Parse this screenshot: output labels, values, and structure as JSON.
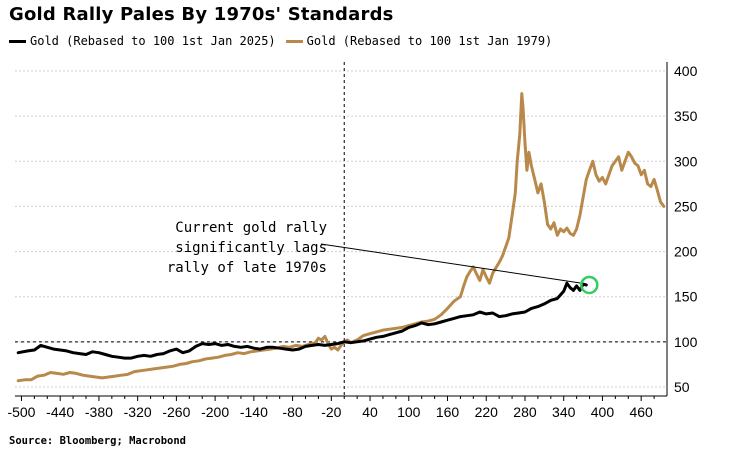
{
  "header": {
    "title": "Gold Rally Pales By 1970s' Standards"
  },
  "footer": {
    "source": "Source: Bloomberg; Macrobond"
  },
  "colors": {
    "series_2025": "#000000",
    "series_1979": "#b8894a",
    "grid": "#cfcfcf",
    "highlight": "#33cc66"
  },
  "chart_data": {
    "type": "line",
    "title": "Gold Rally Pales By 1970s' Standards",
    "xlabel": "",
    "ylabel": "",
    "xlim": [
      -510,
      500
    ],
    "ylim": [
      40,
      410
    ],
    "x_ticks": [
      -500,
      -440,
      -380,
      -320,
      -260,
      -200,
      -140,
      -80,
      -20,
      40,
      100,
      160,
      220,
      280,
      340,
      400,
      460
    ],
    "y_ticks": [
      50,
      100,
      150,
      200,
      250,
      300,
      350,
      400
    ],
    "y_axis_side": "right",
    "grid": "horizontal dotted",
    "legend_position": "top",
    "reference_lines": [
      {
        "axis": "y",
        "value": 100,
        "style": "dashed"
      },
      {
        "axis": "x",
        "value": 0,
        "style": "dashed"
      }
    ],
    "annotation": {
      "lines": [
        "Current gold rally",
        "significantly lags",
        "rally of late 1970s"
      ],
      "points_to": {
        "x": 375,
        "y": 163
      }
    },
    "series": [
      {
        "name": "Gold (Rebased to 100 1st Jan 2025)",
        "color": "#000000",
        "points": [
          [
            -505,
            88
          ],
          [
            -490,
            90
          ],
          [
            -480,
            91
          ],
          [
            -470,
            96
          ],
          [
            -460,
            94
          ],
          [
            -450,
            92
          ],
          [
            -440,
            91
          ],
          [
            -430,
            90
          ],
          [
            -420,
            88
          ],
          [
            -410,
            87
          ],
          [
            -400,
            86
          ],
          [
            -390,
            89
          ],
          [
            -380,
            88
          ],
          [
            -370,
            86
          ],
          [
            -360,
            84
          ],
          [
            -350,
            83
          ],
          [
            -340,
            82
          ],
          [
            -330,
            82
          ],
          [
            -320,
            84
          ],
          [
            -310,
            85
          ],
          [
            -300,
            84
          ],
          [
            -290,
            86
          ],
          [
            -280,
            87
          ],
          [
            -270,
            90
          ],
          [
            -260,
            92
          ],
          [
            -250,
            88
          ],
          [
            -240,
            90
          ],
          [
            -230,
            95
          ],
          [
            -220,
            98
          ],
          [
            -210,
            97
          ],
          [
            -200,
            98
          ],
          [
            -190,
            96
          ],
          [
            -180,
            97
          ],
          [
            -170,
            95
          ],
          [
            -160,
            94
          ],
          [
            -150,
            95
          ],
          [
            -140,
            93
          ],
          [
            -130,
            92
          ],
          [
            -120,
            94
          ],
          [
            -110,
            94
          ],
          [
            -100,
            93
          ],
          [
            -90,
            92
          ],
          [
            -80,
            91
          ],
          [
            -70,
            92
          ],
          [
            -60,
            95
          ],
          [
            -50,
            96
          ],
          [
            -40,
            97
          ],
          [
            -30,
            96
          ],
          [
            -20,
            97
          ],
          [
            -10,
            98
          ],
          [
            0,
            100
          ],
          [
            10,
            99
          ],
          [
            20,
            100
          ],
          [
            30,
            101
          ],
          [
            40,
            103
          ],
          [
            50,
            105
          ],
          [
            60,
            106
          ],
          [
            70,
            108
          ],
          [
            80,
            110
          ],
          [
            90,
            112
          ],
          [
            100,
            116
          ],
          [
            110,
            118
          ],
          [
            120,
            121
          ],
          [
            130,
            119
          ],
          [
            140,
            120
          ],
          [
            150,
            122
          ],
          [
            160,
            124
          ],
          [
            170,
            126
          ],
          [
            180,
            128
          ],
          [
            190,
            129
          ],
          [
            200,
            130
          ],
          [
            210,
            133
          ],
          [
            220,
            131
          ],
          [
            230,
            132
          ],
          [
            240,
            128
          ],
          [
            250,
            129
          ],
          [
            260,
            131
          ],
          [
            270,
            132
          ],
          [
            280,
            133
          ],
          [
            290,
            137
          ],
          [
            300,
            139
          ],
          [
            310,
            142
          ],
          [
            320,
            146
          ],
          [
            330,
            148
          ],
          [
            340,
            156
          ],
          [
            345,
            165
          ],
          [
            350,
            160
          ],
          [
            355,
            157
          ],
          [
            360,
            162
          ],
          [
            365,
            157
          ],
          [
            370,
            164
          ],
          [
            375,
            163
          ]
        ]
      },
      {
        "name": "Gold (Rebased to 100 1st Jan 1979)",
        "color": "#b8894a",
        "points": [
          [
            -505,
            57
          ],
          [
            -495,
            58
          ],
          [
            -485,
            58
          ],
          [
            -475,
            62
          ],
          [
            -465,
            63
          ],
          [
            -455,
            66
          ],
          [
            -445,
            65
          ],
          [
            -435,
            64
          ],
          [
            -425,
            66
          ],
          [
            -415,
            65
          ],
          [
            -405,
            63
          ],
          [
            -395,
            62
          ],
          [
            -385,
            61
          ],
          [
            -375,
            60
          ],
          [
            -365,
            61
          ],
          [
            -355,
            62
          ],
          [
            -345,
            63
          ],
          [
            -335,
            64
          ],
          [
            -325,
            67
          ],
          [
            -315,
            68
          ],
          [
            -305,
            69
          ],
          [
            -295,
            70
          ],
          [
            -285,
            71
          ],
          [
            -275,
            72
          ],
          [
            -265,
            73
          ],
          [
            -255,
            75
          ],
          [
            -245,
            76
          ],
          [
            -235,
            78
          ],
          [
            -225,
            79
          ],
          [
            -215,
            81
          ],
          [
            -205,
            82
          ],
          [
            -195,
            83
          ],
          [
            -185,
            85
          ],
          [
            -175,
            86
          ],
          [
            -165,
            88
          ],
          [
            -155,
            87
          ],
          [
            -145,
            89
          ],
          [
            -135,
            90
          ],
          [
            -125,
            91
          ],
          [
            -115,
            92
          ],
          [
            -105,
            93
          ],
          [
            -95,
            95
          ],
          [
            -85,
            94
          ],
          [
            -75,
            96
          ],
          [
            -65,
            95
          ],
          [
            -55,
            97
          ],
          [
            -45,
            99
          ],
          [
            -40,
            104
          ],
          [
            -35,
            102
          ],
          [
            -30,
            106
          ],
          [
            -25,
            98
          ],
          [
            -20,
            92
          ],
          [
            -15,
            94
          ],
          [
            -10,
            91
          ],
          [
            -5,
            96
          ],
          [
            0,
            100
          ],
          [
            5,
            102
          ],
          [
            10,
            99
          ],
          [
            20,
            102
          ],
          [
            30,
            107
          ],
          [
            40,
            109
          ],
          [
            50,
            111
          ],
          [
            60,
            113
          ],
          [
            70,
            114
          ],
          [
            80,
            115
          ],
          [
            90,
            116
          ],
          [
            100,
            118
          ],
          [
            110,
            120
          ],
          [
            120,
            122
          ],
          [
            130,
            123
          ],
          [
            140,
            125
          ],
          [
            150,
            130
          ],
          [
            160,
            137
          ],
          [
            170,
            145
          ],
          [
            180,
            150
          ],
          [
            185,
            162
          ],
          [
            190,
            172
          ],
          [
            195,
            178
          ],
          [
            200,
            183
          ],
          [
            205,
            175
          ],
          [
            210,
            168
          ],
          [
            215,
            180
          ],
          [
            220,
            172
          ],
          [
            225,
            165
          ],
          [
            230,
            176
          ],
          [
            235,
            182
          ],
          [
            240,
            188
          ],
          [
            245,
            195
          ],
          [
            250,
            205
          ],
          [
            255,
            215
          ],
          [
            260,
            240
          ],
          [
            265,
            265
          ],
          [
            268,
            300
          ],
          [
            272,
            330
          ],
          [
            275,
            375
          ],
          [
            277,
            360
          ],
          [
            280,
            320
          ],
          [
            283,
            290
          ],
          [
            286,
            310
          ],
          [
            290,
            295
          ],
          [
            295,
            280
          ],
          [
            300,
            265
          ],
          [
            305,
            275
          ],
          [
            310,
            255
          ],
          [
            315,
            230
          ],
          [
            320,
            225
          ],
          [
            325,
            232
          ],
          [
            330,
            218
          ],
          [
            335,
            225
          ],
          [
            340,
            222
          ],
          [
            345,
            226
          ],
          [
            350,
            220
          ],
          [
            355,
            218
          ],
          [
            360,
            225
          ],
          [
            365,
            240
          ],
          [
            370,
            260
          ],
          [
            375,
            280
          ],
          [
            380,
            290
          ],
          [
            385,
            300
          ],
          [
            390,
            285
          ],
          [
            395,
            278
          ],
          [
            400,
            282
          ],
          [
            405,
            275
          ],
          [
            410,
            285
          ],
          [
            415,
            295
          ],
          [
            420,
            300
          ],
          [
            425,
            305
          ],
          [
            430,
            290
          ],
          [
            435,
            300
          ],
          [
            440,
            310
          ],
          [
            445,
            305
          ],
          [
            450,
            298
          ],
          [
            455,
            295
          ],
          [
            460,
            285
          ],
          [
            465,
            290
          ],
          [
            470,
            275
          ],
          [
            475,
            272
          ],
          [
            480,
            280
          ],
          [
            485,
            268
          ],
          [
            490,
            255
          ],
          [
            495,
            250
          ]
        ]
      }
    ]
  }
}
